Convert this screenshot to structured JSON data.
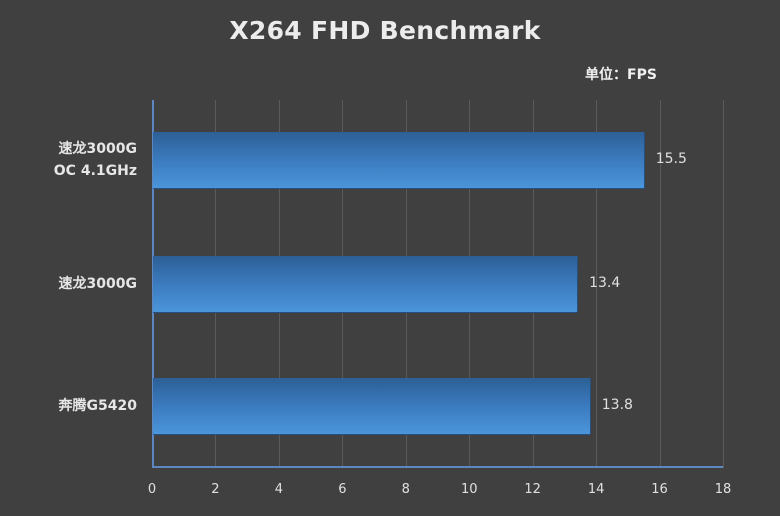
{
  "chart_data": {
    "type": "bar",
    "orientation": "horizontal",
    "title": "X264 FHD Benchmark",
    "unit_label": "单位：FPS",
    "categories": [
      "速龙3000G OC 4.1GHz",
      "速龙3000G",
      "奔腾G5420"
    ],
    "category_lines": [
      [
        "速龙3000G",
        "OC 4.1GHz"
      ],
      [
        "速龙3000G"
      ],
      [
        "奔腾G5420"
      ]
    ],
    "values": [
      15.5,
      13.4,
      13.8
    ],
    "value_labels": [
      "15.5",
      "13.4",
      "13.8"
    ],
    "xlabel": "",
    "ylabel": "",
    "xlim": [
      0,
      18
    ],
    "xticks": [
      "0",
      "2",
      "4",
      "6",
      "8",
      "10",
      "12",
      "14",
      "16",
      "18"
    ],
    "grid": true,
    "legend": false,
    "bar_color": "#3a78bb",
    "background": "#404040"
  }
}
